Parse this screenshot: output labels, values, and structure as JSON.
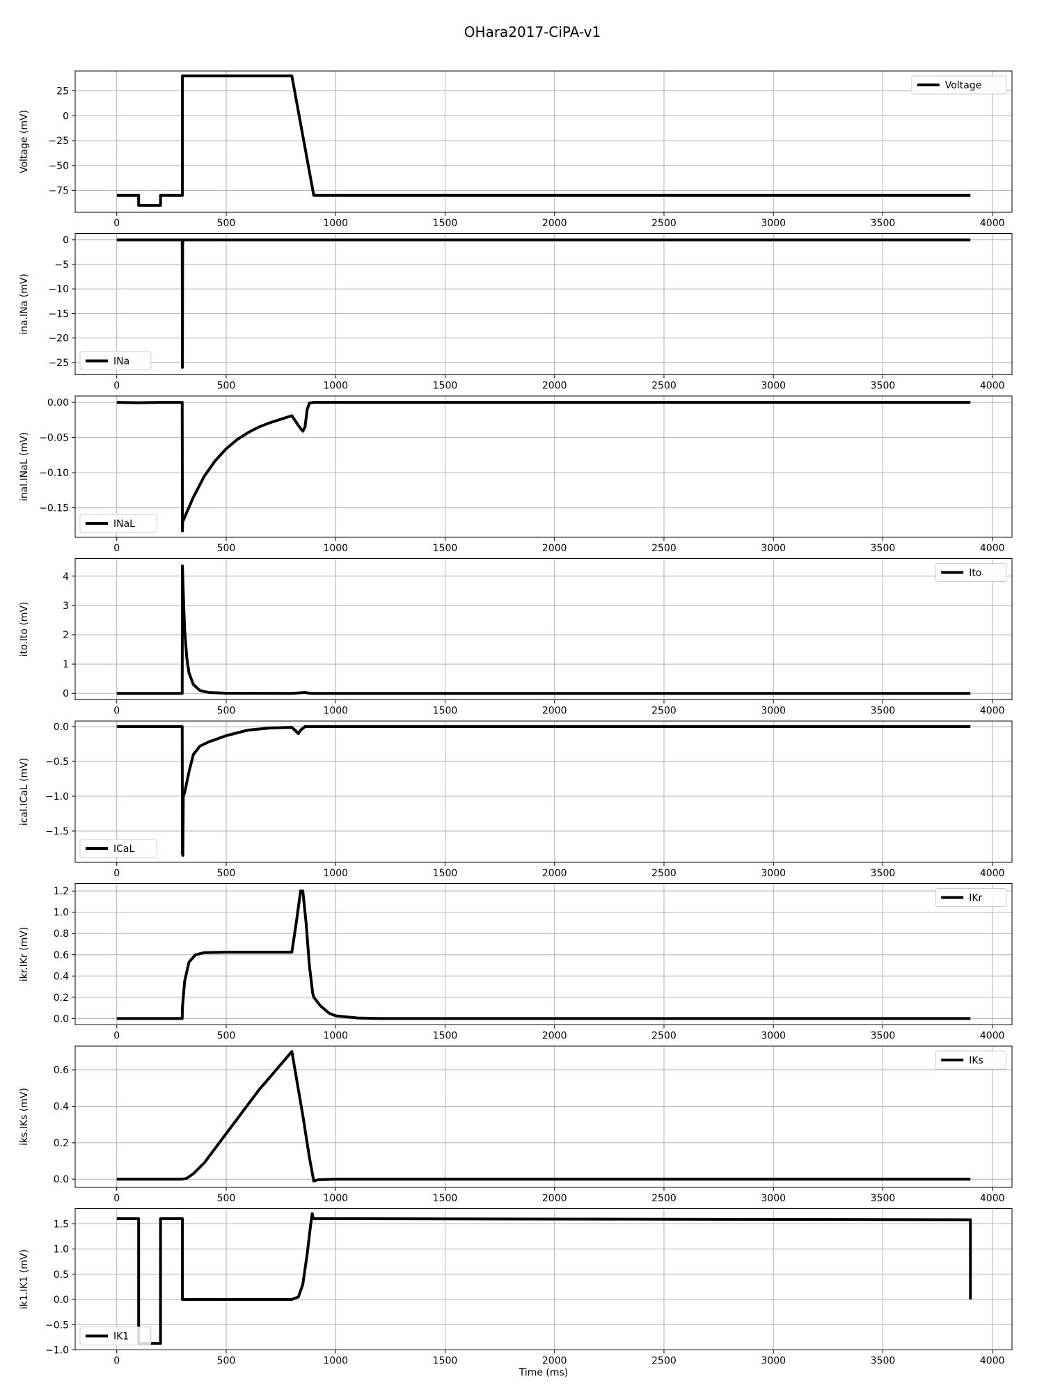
{
  "figure": {
    "title": "OHara2017-CiPA-v1",
    "xlabel": "Time (ms)"
  },
  "style": {
    "line_color": "#000000",
    "grid_color": "#b0b0b0",
    "frame_color": "#000000"
  },
  "chart_data": [
    {
      "type": "line",
      "ylabel": "Voltage (mV)",
      "legend": "Voltage",
      "legend_loc": "top-right",
      "xlim": [
        -190,
        4090
      ],
      "ylim": [
        -97,
        45
      ],
      "xticks": [
        0,
        500,
        1000,
        1500,
        2000,
        2500,
        3000,
        3500,
        4000
      ],
      "yticks": [
        -75,
        -50,
        -25,
        0,
        25
      ],
      "ytick_labels": [
        "−75",
        "−50",
        "−25",
        "0",
        "25"
      ],
      "points": [
        [
          0,
          -80
        ],
        [
          100,
          -80
        ],
        [
          100,
          -90
        ],
        [
          200,
          -90
        ],
        [
          200,
          -80
        ],
        [
          300,
          -80
        ],
        [
          300,
          40
        ],
        [
          800,
          40
        ],
        [
          900,
          -80
        ],
        [
          3900,
          -80
        ]
      ]
    },
    {
      "type": "line",
      "ylabel": "ina.INa (mV)",
      "legend": "INa",
      "legend_loc": "bottom-left",
      "xlim": [
        -190,
        4090
      ],
      "ylim": [
        -27.5,
        1.3
      ],
      "xticks": [
        0,
        500,
        1000,
        1500,
        2000,
        2500,
        3000,
        3500,
        4000
      ],
      "yticks": [
        -25,
        -20,
        -15,
        -10,
        -5,
        0
      ],
      "ytick_labels": [
        "−25",
        "−20",
        "−15",
        "−10",
        "−5",
        "0"
      ],
      "points": [
        [
          0,
          0
        ],
        [
          299,
          0
        ],
        [
          300,
          -26
        ],
        [
          301,
          -1
        ],
        [
          302,
          0
        ],
        [
          3900,
          0
        ]
      ]
    },
    {
      "type": "line",
      "ylabel": "inal.INaL (mV)",
      "legend": "INaL",
      "legend_loc": "bottom-left",
      "xlim": [
        -190,
        4090
      ],
      "ylim": [
        -0.192,
        0.009
      ],
      "xticks": [
        0,
        500,
        1000,
        1500,
        2000,
        2500,
        3000,
        3500,
        4000
      ],
      "yticks": [
        -0.15,
        -0.1,
        -0.05,
        0.0
      ],
      "ytick_labels": [
        "−0.15",
        "−0.10",
        "−0.05",
        "0.00"
      ],
      "points": [
        [
          0,
          0
        ],
        [
          100,
          -0.0005
        ],
        [
          200,
          0
        ],
        [
          299,
          0
        ],
        [
          300,
          -0.183
        ],
        [
          301,
          -0.17
        ],
        [
          350,
          -0.135
        ],
        [
          400,
          -0.105
        ],
        [
          450,
          -0.083
        ],
        [
          500,
          -0.066
        ],
        [
          550,
          -0.053
        ],
        [
          600,
          -0.043
        ],
        [
          650,
          -0.035
        ],
        [
          700,
          -0.029
        ],
        [
          750,
          -0.024
        ],
        [
          800,
          -0.019
        ],
        [
          830,
          -0.033
        ],
        [
          850,
          -0.041
        ],
        [
          860,
          -0.035
        ],
        [
          870,
          -0.01
        ],
        [
          880,
          -0.001
        ],
        [
          900,
          0
        ],
        [
          3900,
          0
        ]
      ]
    },
    {
      "type": "line",
      "ylabel": "ito.Ito (mV)",
      "legend": "Ito",
      "legend_loc": "top-right",
      "xlim": [
        -190,
        4090
      ],
      "ylim": [
        -0.22,
        4.6
      ],
      "xticks": [
        0,
        500,
        1000,
        1500,
        2000,
        2500,
        3000,
        3500,
        4000
      ],
      "yticks": [
        0,
        1,
        2,
        3,
        4
      ],
      "ytick_labels": [
        "0",
        "1",
        "2",
        "3",
        "4"
      ],
      "points": [
        [
          0,
          0
        ],
        [
          299,
          0
        ],
        [
          300,
          4.35
        ],
        [
          305,
          3.2
        ],
        [
          310,
          2.2
        ],
        [
          320,
          1.2
        ],
        [
          330,
          0.7
        ],
        [
          350,
          0.3
        ],
        [
          380,
          0.1
        ],
        [
          420,
          0.03
        ],
        [
          500,
          0.005
        ],
        [
          800,
          0
        ],
        [
          860,
          0.03
        ],
        [
          880,
          0.005
        ],
        [
          900,
          0
        ],
        [
          3900,
          0
        ]
      ]
    },
    {
      "type": "line",
      "ylabel": "ical.ICaL (mV)",
      "legend": "ICaL",
      "legend_loc": "bottom-left",
      "xlim": [
        -190,
        4090
      ],
      "ylim": [
        -1.95,
        0.08
      ],
      "xticks": [
        0,
        500,
        1000,
        1500,
        2000,
        2500,
        3000,
        3500,
        4000
      ],
      "yticks": [
        -1.5,
        -1.0,
        -0.5,
        0.0
      ],
      "ytick_labels": [
        "−1.5",
        "−1.0",
        "−0.5",
        "0.0"
      ],
      "points": [
        [
          0,
          0
        ],
        [
          299,
          0
        ],
        [
          300,
          -1.82
        ],
        [
          302,
          -1.85
        ],
        [
          304,
          -1.0
        ],
        [
          310,
          -0.95
        ],
        [
          330,
          -0.65
        ],
        [
          350,
          -0.4
        ],
        [
          380,
          -0.28
        ],
        [
          420,
          -0.22
        ],
        [
          500,
          -0.13
        ],
        [
          600,
          -0.05
        ],
        [
          700,
          -0.02
        ],
        [
          800,
          -0.01
        ],
        [
          820,
          -0.07
        ],
        [
          830,
          -0.1
        ],
        [
          840,
          -0.05
        ],
        [
          860,
          0
        ],
        [
          3900,
          0
        ]
      ]
    },
    {
      "type": "line",
      "ylabel": "ikr.IKr (mV)",
      "legend": "IKr",
      "legend_loc": "top-right",
      "xlim": [
        -190,
        4090
      ],
      "ylim": [
        -0.06,
        1.27
      ],
      "xticks": [
        0,
        500,
        1000,
        1500,
        2000,
        2500,
        3000,
        3500,
        4000
      ],
      "yticks": [
        0.0,
        0.2,
        0.4,
        0.6,
        0.8,
        1.0,
        1.2
      ],
      "ytick_labels": [
        "0.0",
        "0.2",
        "0.4",
        "0.6",
        "0.8",
        "1.0",
        "1.2"
      ],
      "points": [
        [
          0,
          0
        ],
        [
          299,
          0
        ],
        [
          300,
          0.1
        ],
        [
          310,
          0.35
        ],
        [
          330,
          0.53
        ],
        [
          360,
          0.6
        ],
        [
          400,
          0.62
        ],
        [
          500,
          0.625
        ],
        [
          800,
          0.625
        ],
        [
          820,
          0.9
        ],
        [
          840,
          1.2
        ],
        [
          850,
          1.2
        ],
        [
          865,
          0.9
        ],
        [
          880,
          0.5
        ],
        [
          895,
          0.24
        ],
        [
          900,
          0.2
        ],
        [
          930,
          0.12
        ],
        [
          970,
          0.05
        ],
        [
          1000,
          0.025
        ],
        [
          1100,
          0.005
        ],
        [
          1200,
          0
        ],
        [
          3900,
          0
        ]
      ]
    },
    {
      "type": "line",
      "ylabel": "iks.IKs (mV)",
      "legend": "IKs",
      "legend_loc": "top-right",
      "xlim": [
        -190,
        4090
      ],
      "ylim": [
        -0.045,
        0.73
      ],
      "xticks": [
        0,
        500,
        1000,
        1500,
        2000,
        2500,
        3000,
        3500,
        4000
      ],
      "yticks": [
        0.0,
        0.2,
        0.4,
        0.6
      ],
      "ytick_labels": [
        "0.0",
        "0.2",
        "0.4",
        "0.6"
      ],
      "points": [
        [
          0,
          0
        ],
        [
          299,
          0
        ],
        [
          320,
          0.005
        ],
        [
          350,
          0.03
        ],
        [
          400,
          0.09
        ],
        [
          450,
          0.17
        ],
        [
          500,
          0.25
        ],
        [
          550,
          0.33
        ],
        [
          600,
          0.41
        ],
        [
          650,
          0.49
        ],
        [
          700,
          0.56
        ],
        [
          750,
          0.63
        ],
        [
          800,
          0.7
        ],
        [
          850,
          0.35
        ],
        [
          880,
          0.12
        ],
        [
          900,
          -0.01
        ],
        [
          920,
          -0.003
        ],
        [
          1000,
          0
        ],
        [
          3900,
          0
        ]
      ]
    },
    {
      "type": "line",
      "ylabel": "ik1.IK1 (mV)",
      "legend": "IK1",
      "legend_loc": "bottom-left",
      "xlim": [
        -190,
        4090
      ],
      "ylim": [
        -1.0,
        1.8
      ],
      "xticks": [
        0,
        500,
        1000,
        1500,
        2000,
        2500,
        3000,
        3500,
        4000
      ],
      "yticks": [
        -1.0,
        -0.5,
        0.0,
        0.5,
        1.0,
        1.5
      ],
      "ytick_labels": [
        "−1.0",
        "−0.5",
        "0.0",
        "0.5",
        "1.0",
        "1.5"
      ],
      "points": [
        [
          0,
          1.6
        ],
        [
          100,
          1.6
        ],
        [
          100,
          -0.87
        ],
        [
          200,
          -0.87
        ],
        [
          200,
          1.6
        ],
        [
          300,
          1.6
        ],
        [
          300,
          0
        ],
        [
          800,
          0
        ],
        [
          830,
          0.05
        ],
        [
          850,
          0.3
        ],
        [
          870,
          0.9
        ],
        [
          885,
          1.45
        ],
        [
          893,
          1.7
        ],
        [
          898,
          1.6
        ],
        [
          1000,
          1.6
        ],
        [
          3900,
          1.58
        ],
        [
          3900,
          0
        ]
      ]
    }
  ]
}
